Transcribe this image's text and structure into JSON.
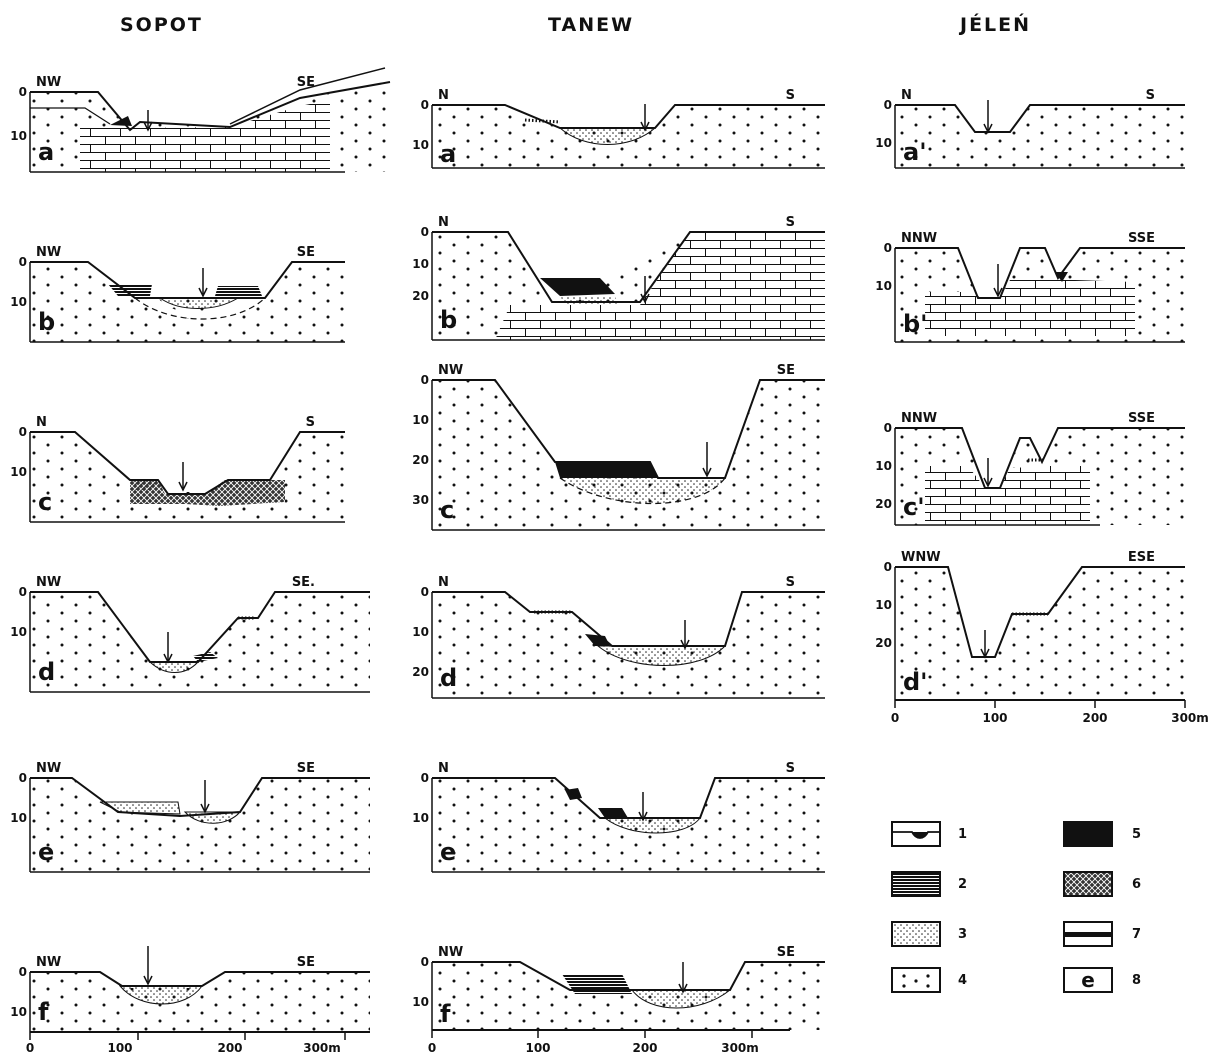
{
  "columns": [
    "SOPOT",
    "TANEW",
    "JÉLEŃ"
  ],
  "sections": [
    {
      "col": 0,
      "letter": "a",
      "left": "NW",
      "right": "SE",
      "depths": [
        "0",
        "10"
      ]
    },
    {
      "col": 0,
      "letter": "b",
      "left": "NW",
      "right": "SE",
      "depths": [
        "0",
        "10"
      ]
    },
    {
      "col": 0,
      "letter": "c",
      "left": "N",
      "right": "S",
      "depths": [
        "0",
        "10"
      ]
    },
    {
      "col": 0,
      "letter": "d",
      "left": "NW",
      "right": "SE.",
      "depths": [
        "0",
        "10"
      ]
    },
    {
      "col": 0,
      "letter": "e",
      "left": "NW",
      "right": "SE",
      "depths": [
        "0",
        "10"
      ]
    },
    {
      "col": 0,
      "letter": "f",
      "left": "NW",
      "right": "SE",
      "depths": [
        "0",
        "10"
      ]
    },
    {
      "col": 1,
      "letter": "a",
      "left": "N",
      "right": "S",
      "depths": [
        "0",
        "10"
      ]
    },
    {
      "col": 1,
      "letter": "b",
      "left": "N",
      "right": "S",
      "depths": [
        "0",
        "10",
        "20"
      ]
    },
    {
      "col": 1,
      "letter": "c",
      "left": "NW",
      "right": "SE",
      "depths": [
        "0",
        "10",
        "20",
        "30"
      ]
    },
    {
      "col": 1,
      "letter": "d",
      "left": "N",
      "right": "S",
      "depths": [
        "0",
        "10",
        "20"
      ]
    },
    {
      "col": 1,
      "letter": "e",
      "left": "N",
      "right": "S",
      "depths": [
        "0",
        "10"
      ]
    },
    {
      "col": 1,
      "letter": "f",
      "left": "NW",
      "right": "SE",
      "depths": [
        "0",
        "10"
      ]
    },
    {
      "col": 2,
      "letter": "a'",
      "left": "N",
      "right": "S",
      "depths": [
        "0",
        "10"
      ]
    },
    {
      "col": 2,
      "letter": "b'",
      "left": "NNW",
      "right": "SSE",
      "depths": [
        "0",
        "10"
      ]
    },
    {
      "col": 2,
      "letter": "c'",
      "left": "NNW",
      "right": "SSE",
      "depths": [
        "0",
        "10",
        "20"
      ]
    },
    {
      "col": 2,
      "letter": "d'",
      "left": "WNW",
      "right": "ESE",
      "depths": [
        "0",
        "10",
        "20"
      ]
    }
  ],
  "scale_bars": [
    {
      "col": 0,
      "ticks": [
        "0",
        "100",
        "200",
        "300m"
      ]
    },
    {
      "col": 1,
      "ticks": [
        "0",
        "100",
        "200",
        "300m"
      ]
    },
    {
      "col": 2,
      "ticks": [
        "0",
        "100",
        "200",
        "300m"
      ]
    }
  ],
  "legend": [
    {
      "num": "1",
      "symbol": "channel-icon"
    },
    {
      "num": "2",
      "symbol": "laminated-black-icon"
    },
    {
      "num": "3",
      "symbol": "sand-stipple-icon"
    },
    {
      "num": "4",
      "symbol": "loess-dots-icon"
    },
    {
      "num": "5",
      "symbol": "solid-black-icon"
    },
    {
      "num": "6",
      "symbol": "crosshatch-icon"
    },
    {
      "num": "7",
      "symbol": "band-icon"
    },
    {
      "num": "8",
      "symbol": "letter-box-icon",
      "text": "e"
    }
  ]
}
